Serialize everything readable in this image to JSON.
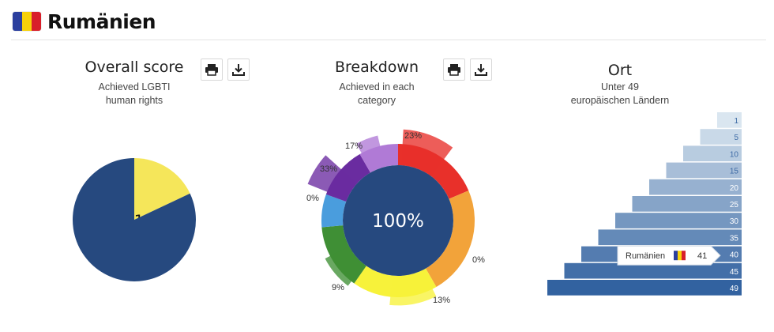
{
  "header": {
    "country": "Rumänien",
    "flag_colors": [
      "#2b3f9e",
      "#f6d10a",
      "#d81f2a"
    ]
  },
  "icons": {
    "print": "print-icon",
    "download": "download-icon"
  },
  "chart_data": [
    {
      "type": "pie",
      "title": "Overall score",
      "subtitle_lines": [
        "Achieved LGBTI",
        "human rights"
      ],
      "slices": [
        {
          "label": "18%",
          "value": 18,
          "color": "#f5e65a"
        },
        {
          "label": "",
          "value": 82,
          "color": "#26497f"
        }
      ]
    },
    {
      "type": "pie",
      "title": "Breakdown",
      "subtitle_lines": [
        "Achieved in each",
        "category"
      ],
      "center_label": "100%",
      "center_color": "#26497f",
      "categories": [
        {
          "label": "23%",
          "value": 23,
          "color": "#e8302a"
        },
        {
          "label": "0%",
          "value": 0,
          "color": "#f2a33a"
        },
        {
          "label": "13%",
          "value": 13,
          "color": "#f7f23a"
        },
        {
          "label": "9%",
          "value": 9,
          "color": "#3f8f35"
        },
        {
          "label": "0%",
          "value": 0,
          "color": "#4a9ddd"
        },
        {
          "label": "33%",
          "value": 33,
          "color": "#6a2ca0"
        },
        {
          "label": "17%",
          "value": 17,
          "color": "#b07ad6"
        }
      ]
    },
    {
      "type": "bar",
      "title": "Ort",
      "subtitle_lines": [
        "Unter 49",
        "europäischen Ländern"
      ],
      "tick_labels": [
        "1",
        "5",
        "10",
        "15",
        "20",
        "25",
        "30",
        "35",
        "40",
        "45",
        "49"
      ],
      "rank": 41,
      "rank_country": "Rumänien",
      "rank_max": 49
    }
  ]
}
